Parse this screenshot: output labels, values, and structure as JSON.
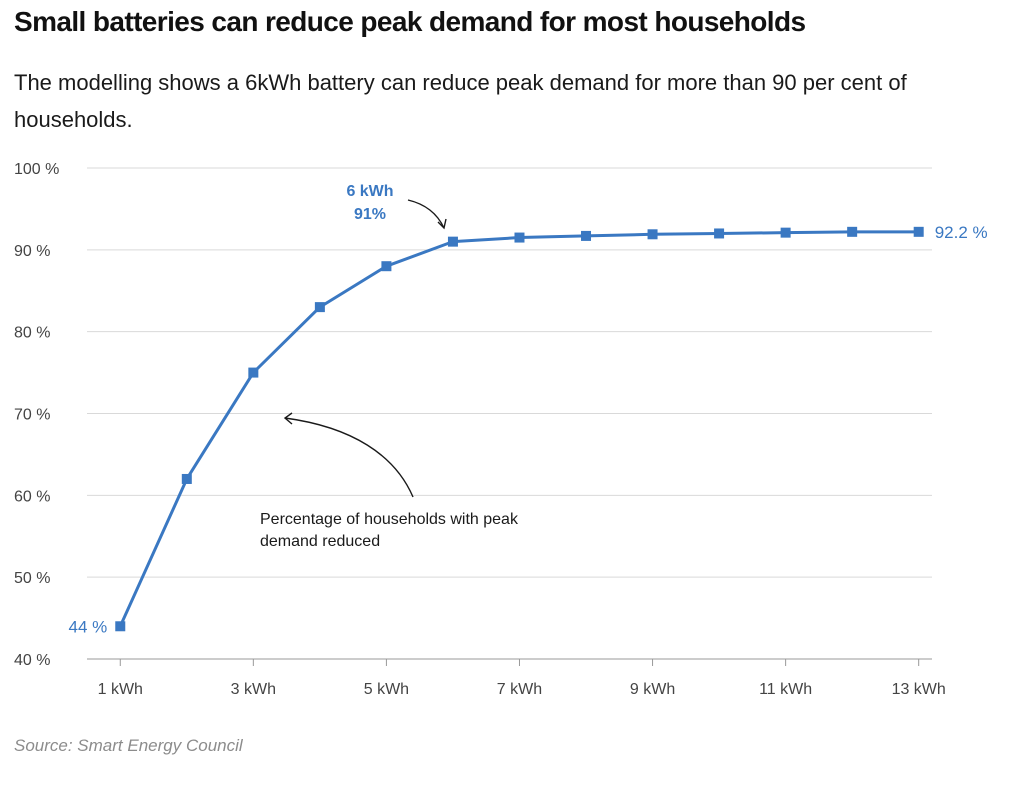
{
  "header": {
    "title": "Small batteries can reduce peak demand for most households",
    "subtitle": "The modelling shows a 6kWh battery can reduce peak demand for more than 90 per cent of households."
  },
  "source": "Source: Smart Energy Council",
  "colors": {
    "series": "#3a78c2",
    "grid": "#d9d9d9",
    "axis": "#999999"
  },
  "chart_data": {
    "type": "line",
    "title": "Small batteries can reduce peak demand for most households",
    "xlabel": "",
    "ylabel": "",
    "x": [
      1,
      2,
      3,
      4,
      5,
      6,
      7,
      8,
      9,
      10,
      11,
      12,
      13
    ],
    "xlim": [
      0.5,
      13.2
    ],
    "ylim": [
      40,
      100
    ],
    "yticks": [
      40,
      50,
      60,
      70,
      80,
      90,
      100
    ],
    "ytick_labels": [
      "40 %",
      "50 %",
      "60 %",
      "70 %",
      "80 %",
      "90 %",
      "100 %"
    ],
    "xticks": [
      1,
      3,
      5,
      7,
      9,
      11,
      13
    ],
    "xtick_labels": [
      "1 kWh",
      "3 kWh",
      "5 kWh",
      "7 kWh",
      "9 kWh",
      "11 kWh",
      "13 kWh"
    ],
    "grid": true,
    "series": [
      {
        "name": "Percentage of households with peak demand reduced",
        "values": [
          44,
          62,
          75,
          83,
          88,
          91,
          91.5,
          91.7,
          91.9,
          92.0,
          92.1,
          92.2,
          92.2
        ]
      }
    ],
    "data_labels": {
      "first": "44 %",
      "last": "92.2 %"
    },
    "annotations": [
      {
        "lines": [
          "6 kWh",
          "91%"
        ],
        "target_x": 6,
        "target_y": 91,
        "highlight": true
      },
      {
        "lines": [
          "Percentage of households with peak",
          "demand reduced"
        ],
        "target_x": 3,
        "target_y": 69,
        "highlight": false
      }
    ]
  }
}
